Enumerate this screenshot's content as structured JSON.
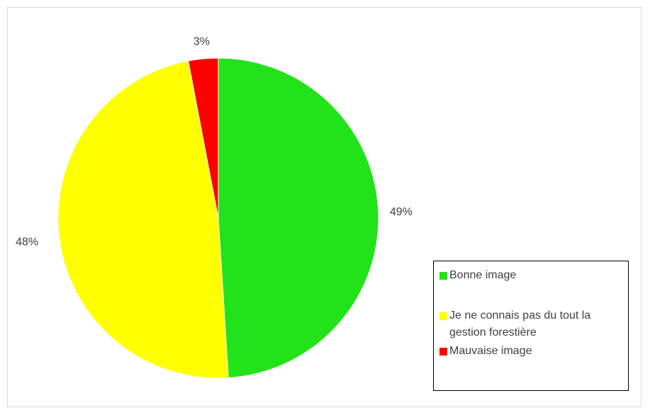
{
  "chart_data": {
    "type": "pie",
    "title": "",
    "categories": [
      "Bonne image",
      "Je ne connais pas du tout la gestion forestière",
      "Mauvaise image"
    ],
    "values": [
      49,
      48,
      3
    ],
    "data_labels": [
      "49%",
      "48%",
      "3%"
    ],
    "colors": [
      "#22E31A",
      "#FFFF00",
      "#FF0000"
    ],
    "start": "12 o'clock",
    "direction": "clockwise",
    "legend_position": "right"
  }
}
